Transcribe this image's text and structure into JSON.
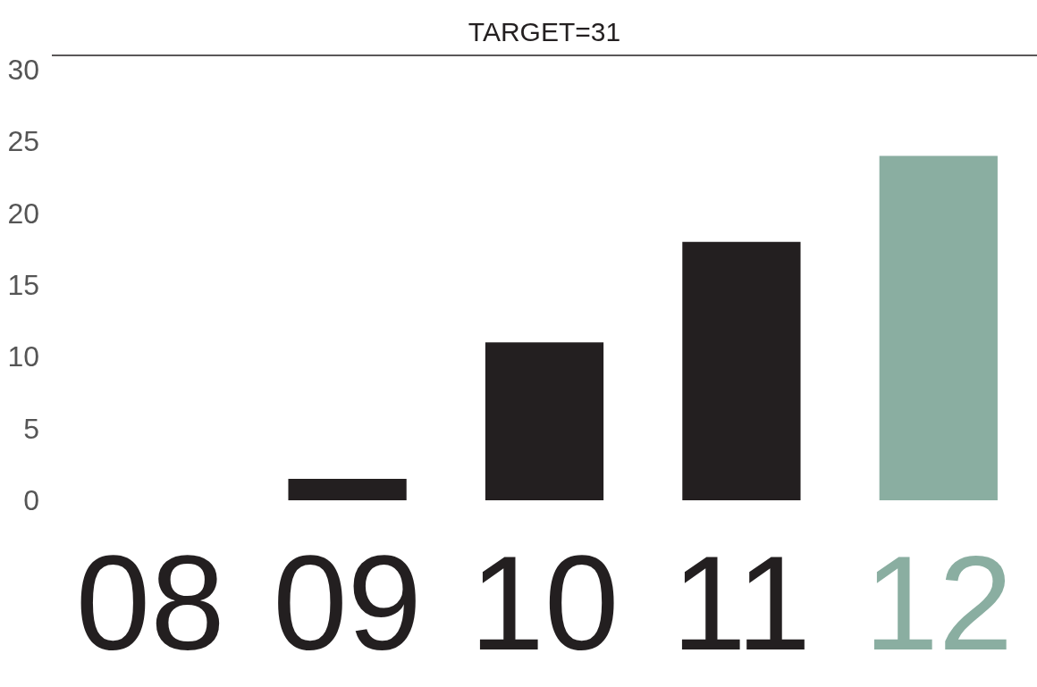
{
  "chart_data": {
    "type": "bar",
    "categories": [
      "08",
      "09",
      "10",
      "11",
      "12"
    ],
    "values": [
      0,
      1.5,
      11,
      18,
      24
    ],
    "colors": [
      "#231f20",
      "#231f20",
      "#231f20",
      "#231f20",
      "#8aaea1"
    ],
    "ylim": [
      0,
      31
    ],
    "yticks": [
      0,
      5,
      10,
      15,
      20,
      25,
      30
    ],
    "ref_lines": [
      {
        "axis": "y",
        "value": 31,
        "label": "TARGET=31",
        "color": "#231f20",
        "line_style": "solid"
      }
    ],
    "grid": false
  }
}
